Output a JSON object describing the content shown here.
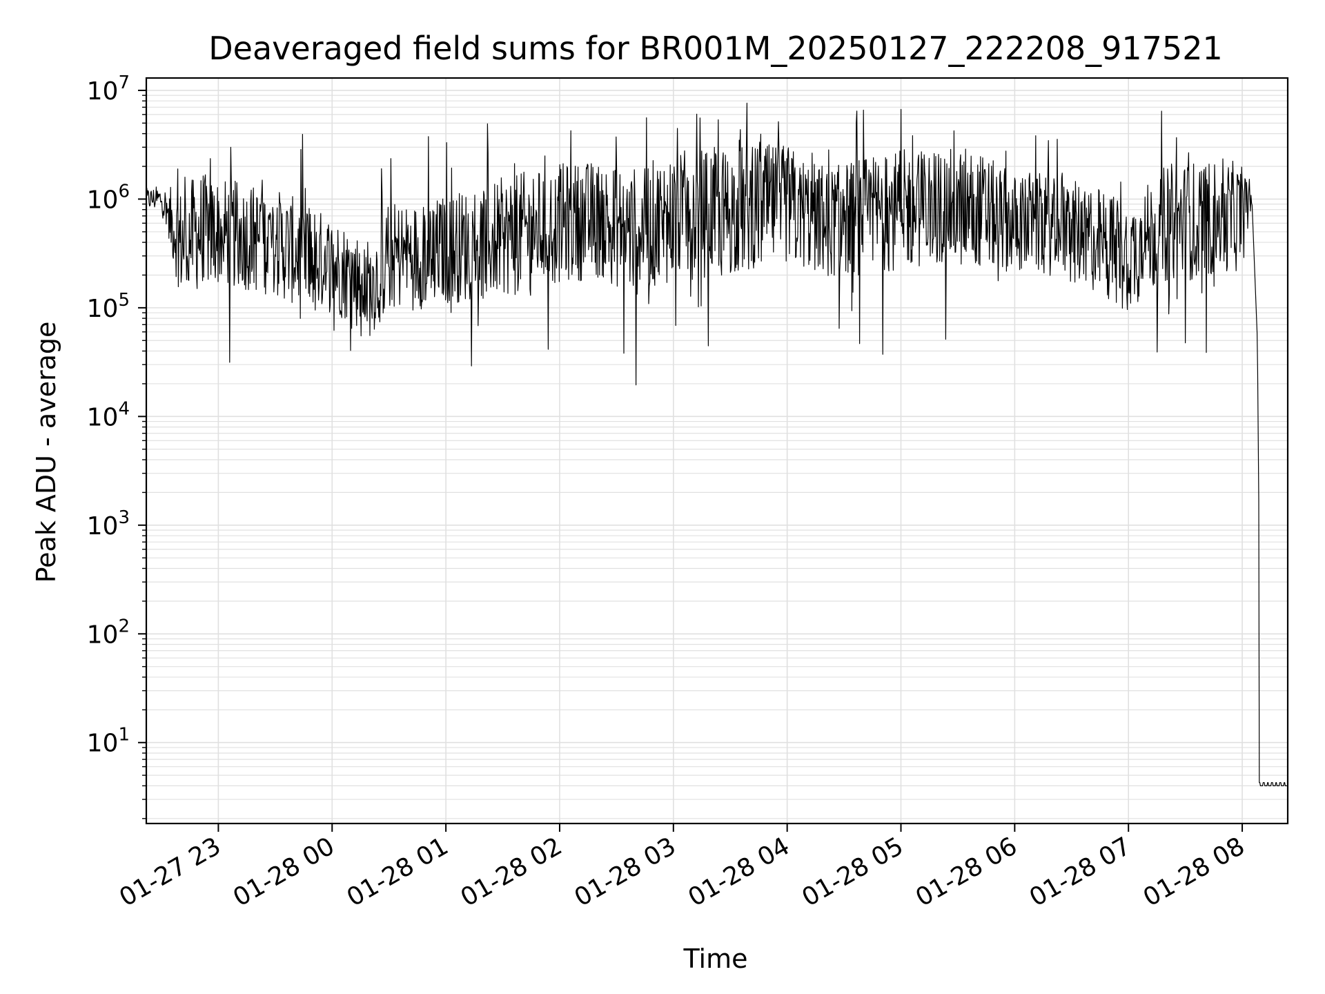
{
  "chart_data": {
    "type": "line",
    "title": "Deaveraged field sums for BR001M_20250127_222208_917521",
    "xlabel": "Time",
    "ylabel": "Peak ADU - average",
    "yscale": "log",
    "ylim": [
      1.8,
      13000000
    ],
    "xlim": [
      "01-27 22:22",
      "01-28 08:24"
    ],
    "grid": true,
    "line_color": "#000000",
    "grid_color": "#e0e0e0",
    "x_ticks": [
      {
        "value": "01-27 23:00",
        "label": "01-27 23"
      },
      {
        "value": "01-28 00:00",
        "label": "01-28 00"
      },
      {
        "value": "01-28 01:00",
        "label": "01-28 01"
      },
      {
        "value": "01-28 02:00",
        "label": "01-28 02"
      },
      {
        "value": "01-28 03:00",
        "label": "01-28 03"
      },
      {
        "value": "01-28 04:00",
        "label": "01-28 04"
      },
      {
        "value": "01-28 05:00",
        "label": "01-28 05"
      },
      {
        "value": "01-28 06:00",
        "label": "01-28 06"
      },
      {
        "value": "01-28 07:00",
        "label": "01-28 07"
      },
      {
        "value": "01-28 08:00",
        "label": "01-28 08"
      }
    ],
    "y_ticks": [
      {
        "value": 10,
        "base": "10",
        "exp": "1"
      },
      {
        "value": 100,
        "base": "10",
        "exp": "2"
      },
      {
        "value": 1000,
        "base": "10",
        "exp": "3"
      },
      {
        "value": 10000,
        "base": "10",
        "exp": "4"
      },
      {
        "value": 100000,
        "base": "10",
        "exp": "5"
      },
      {
        "value": 1000000,
        "base": "10",
        "exp": "6"
      },
      {
        "value": 10000000,
        "base": "10",
        "exp": "7"
      }
    ],
    "series": [
      {
        "x": [
          "01-27 22:22",
          "01-27 22:30",
          "01-27 22:40",
          "01-27 22:50",
          "01-27 23:00",
          "01-27 23:15",
          "01-27 23:30",
          "01-27 23:45",
          "01-28 00:00",
          "01-28 00:10",
          "01-28 00:20",
          "01-28 00:30",
          "01-28 00:45",
          "01-28 01:00",
          "01-28 01:20",
          "01-28 01:40",
          "01-28 02:00",
          "01-28 02:20",
          "01-28 02:40",
          "01-28 03:00",
          "01-28 03:20",
          "01-28 03:40",
          "01-28 04:00",
          "01-28 04:20",
          "01-28 04:40",
          "01-28 05:00",
          "01-28 05:20",
          "01-28 05:40",
          "01-28 06:00",
          "01-28 06:20",
          "01-28 06:40",
          "01-28 07:00",
          "01-28 07:20",
          "01-28 07:40",
          "01-28 08:00",
          "01-28 08:05",
          "01-28 08:08",
          "01-28 08:10",
          "01-28 08:11",
          "01-28 08:24"
        ],
        "values": [
          1000000,
          1000000,
          400000,
          500000,
          500000,
          450000,
          400000,
          300000,
          250000,
          200000,
          150000,
          300000,
          300000,
          350000,
          400000,
          500000,
          600000,
          650000,
          500000,
          700000,
          750000,
          800000,
          900000,
          600000,
          700000,
          800000,
          850000,
          800000,
          600000,
          550000,
          450000,
          300000,
          600000,
          650000,
          700000,
          1100000,
          50000,
          4,
          4,
          4
        ],
        "noise_spread_log10": [
          0.1,
          0.12,
          0.5,
          0.55,
          0.5,
          0.5,
          0.5,
          0.5,
          0.45,
          0.45,
          0.45,
          0.5,
          0.5,
          0.5,
          0.55,
          0.55,
          0.55,
          0.55,
          0.6,
          0.6,
          0.6,
          0.6,
          0.55,
          0.5,
          0.55,
          0.55,
          0.55,
          0.55,
          0.45,
          0.45,
          0.5,
          0.5,
          0.55,
          0.55,
          0.5,
          0.1,
          0,
          0,
          0,
          0
        ]
      }
    ]
  }
}
